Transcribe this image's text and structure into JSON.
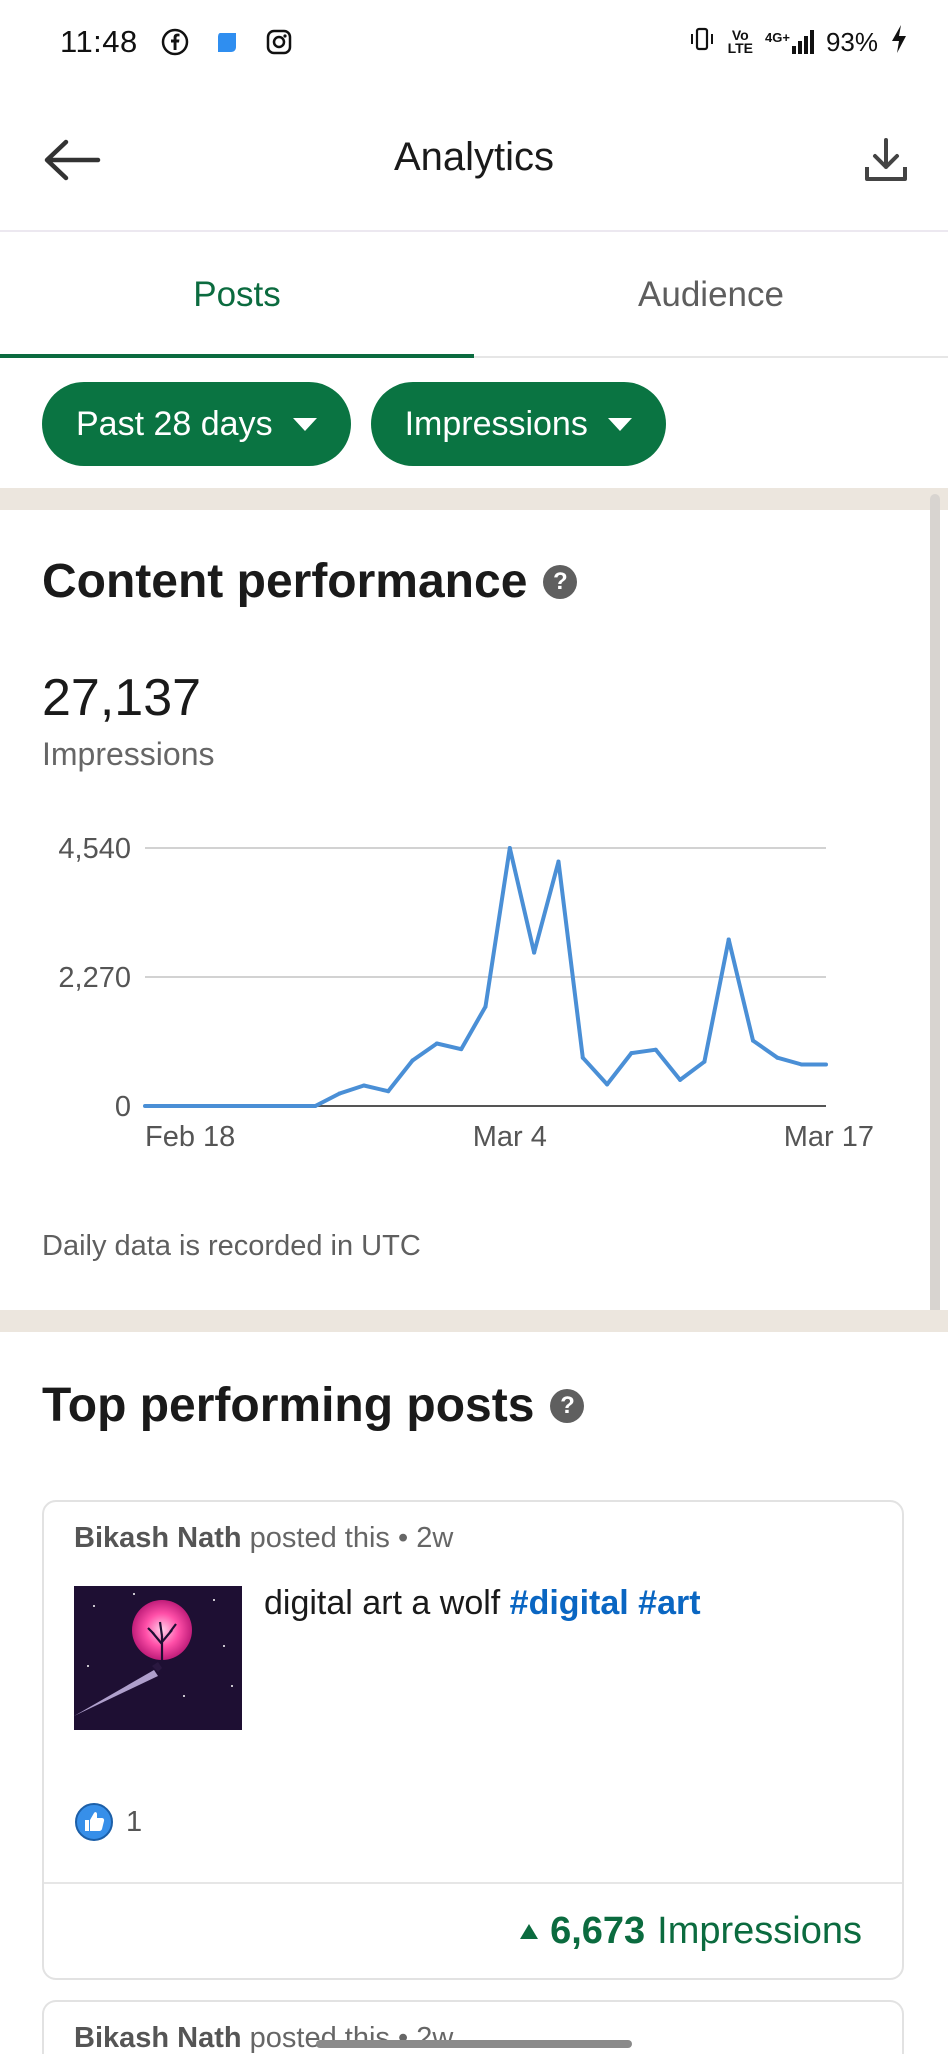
{
  "status_bar": {
    "time": "11:48",
    "apps": [
      "facebook-icon",
      "app-icon",
      "instagram-icon"
    ],
    "network": "4G+",
    "battery": "93%"
  },
  "app_bar": {
    "title": "Analytics",
    "back_icon": "arrow-left-icon",
    "download_icon": "download-icon"
  },
  "tabs": [
    {
      "label": "Posts",
      "active": true
    },
    {
      "label": "Audience",
      "active": false
    }
  ],
  "filters": {
    "range": "Past 28 days",
    "metric": "Impressions"
  },
  "performance": {
    "title": "Content performance",
    "total": "27,137",
    "total_label": "Impressions",
    "note": "Daily data is recorded in UTC"
  },
  "chart_data": {
    "type": "line",
    "x": [
      "Feb 18",
      "Feb 19",
      "Feb 20",
      "Feb 21",
      "Feb 22",
      "Feb 23",
      "Feb 24",
      "Feb 25",
      "Feb 26",
      "Feb 27",
      "Feb 28",
      "Feb 29",
      "Mar 1",
      "Mar 2",
      "Mar 3",
      "Mar 4",
      "Mar 5",
      "Mar 6",
      "Mar 7",
      "Mar 8",
      "Mar 9",
      "Mar 10",
      "Mar 11",
      "Mar 12",
      "Mar 13",
      "Mar 14",
      "Mar 15",
      "Mar 16",
      "Mar 17"
    ],
    "values": [
      0,
      0,
      0,
      0,
      0,
      0,
      0,
      0,
      220,
      360,
      260,
      800,
      1100,
      1000,
      1750,
      4540,
      2700,
      4300,
      850,
      380,
      930,
      990,
      460,
      780,
      2930,
      1150,
      850,
      730,
      730
    ],
    "xticks": [
      "Feb 18",
      "Mar 4",
      "Mar 17"
    ],
    "yticks": [
      "0",
      "2,270",
      "4,540"
    ],
    "ylim": [
      0,
      4540
    ],
    "grid": true,
    "color": "#4a8fd6"
  },
  "top_posts": {
    "title": "Top performing posts",
    "posts": [
      {
        "author": "Bikash Nath",
        "meta": " posted this • 2w",
        "text": "digital art a wolf ",
        "hashtags": [
          "#digital",
          "#art"
        ],
        "likes": "1",
        "impressions": "6,673",
        "impressions_label": "Impressions"
      },
      {
        "author": "Bikash Nath",
        "meta": " posted this • 2w"
      }
    ]
  },
  "colors": {
    "accent_green": "#0a7442",
    "link_blue": "#0a66c2",
    "line_blue": "#4a8fd6"
  }
}
